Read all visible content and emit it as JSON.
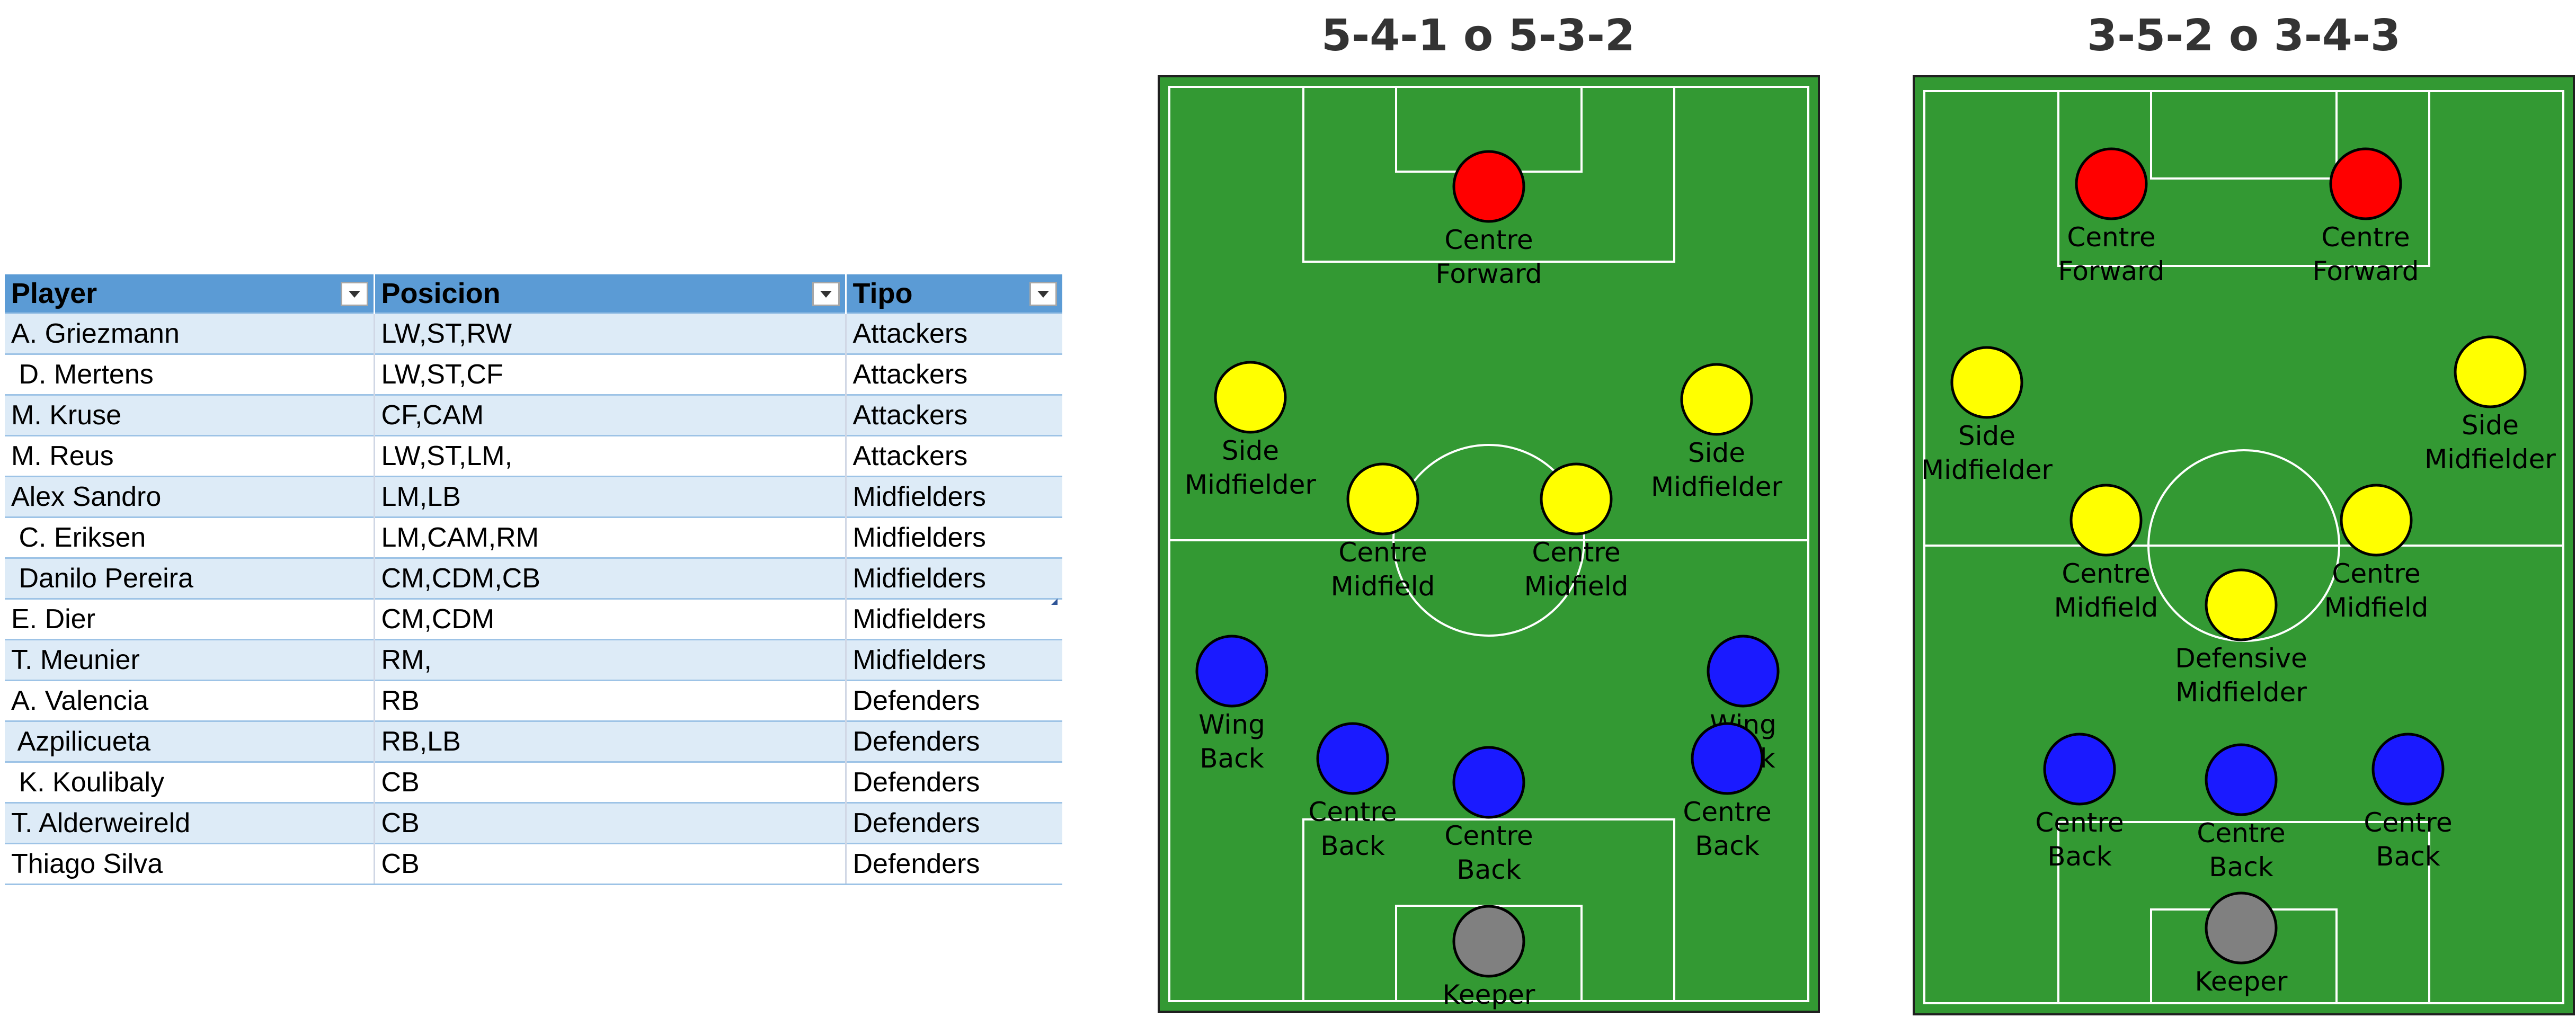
{
  "table": {
    "headers": [
      "Player",
      "Posicion",
      "Tipo"
    ],
    "rows": [
      [
        "A. Griezmann",
        "LW,ST,RW",
        "Attackers"
      ],
      [
        " D. Mertens",
        "LW,ST,CF",
        "Attackers"
      ],
      [
        "M. Kruse",
        "CF,CAM",
        "Attackers"
      ],
      [
        "M. Reus",
        "LW,ST,LM,",
        "Attackers"
      ],
      [
        "Alex Sandro",
        "LM,LB",
        "Midfielders"
      ],
      [
        " C. Eriksen",
        "LM,CAM,RM",
        "Midfielders"
      ],
      [
        " Danilo Pereira",
        "CM,CDM,CB",
        "Midfielders"
      ],
      [
        "E. Dier",
        "CM,CDM",
        "Midfielders"
      ],
      [
        "T. Meunier",
        "RM,",
        "Midfielders"
      ],
      [
        "A. Valencia",
        "RB",
        "Defenders"
      ],
      [
        " Azpilicueta",
        "RB,LB",
        "Defenders"
      ],
      [
        " K. Koulibaly",
        "CB",
        "Defenders"
      ],
      [
        "T. Alderweireld",
        "CB",
        "Defenders"
      ],
      [
        "Thiago Silva",
        "CB",
        "Defenders"
      ]
    ]
  },
  "colors": {
    "header_blue": "#5b9bd5",
    "band_blue": "#ddebf7",
    "pitch_green": "#339933",
    "forward_red": "#ff0000",
    "midfield_yellow": "#ffff00",
    "defender_blue": "#1a1aff",
    "keeper_gray": "#808080"
  },
  "formations": [
    {
      "title": "5-4-1 o 5-3-2",
      "players": [
        {
          "role": "forward",
          "label": [
            "Centre",
            "Forward"
          ]
        },
        {
          "role": "midfield",
          "label": [
            "Side",
            "Midfielder"
          ]
        },
        {
          "role": "midfield",
          "label": [
            "Side",
            "Midfielder"
          ]
        },
        {
          "role": "midfield",
          "label": [
            "Centre",
            "Midfield"
          ]
        },
        {
          "role": "midfield",
          "label": [
            "Centre",
            "Midfield"
          ]
        },
        {
          "role": "defender",
          "label": [
            "Wing",
            "Back"
          ]
        },
        {
          "role": "defender",
          "label": [
            "Wing",
            "Back"
          ]
        },
        {
          "role": "defender",
          "label": [
            "Centre",
            "Back"
          ]
        },
        {
          "role": "defender",
          "label": [
            "Centre",
            "Back"
          ]
        },
        {
          "role": "defender",
          "label": [
            "Centre",
            "Back"
          ]
        },
        {
          "role": "keeper",
          "label": [
            "Keeper"
          ]
        }
      ]
    },
    {
      "title": "3-5-2 o 3-4-3",
      "players": [
        {
          "role": "forward",
          "label": [
            "Centre",
            "Forward"
          ]
        },
        {
          "role": "forward",
          "label": [
            "Centre",
            "Forward"
          ]
        },
        {
          "role": "midfield",
          "label": [
            "Side",
            "Midfielder"
          ]
        },
        {
          "role": "midfield",
          "label": [
            "Side",
            "Midfielder"
          ]
        },
        {
          "role": "midfield",
          "label": [
            "Centre",
            "Midfield"
          ]
        },
        {
          "role": "midfield",
          "label": [
            "Centre",
            "Midfield"
          ]
        },
        {
          "role": "midfield",
          "label": [
            "Defensive",
            "Midfielder"
          ]
        },
        {
          "role": "defender",
          "label": [
            "Centre",
            "Back"
          ]
        },
        {
          "role": "defender",
          "label": [
            "Centre",
            "Back"
          ]
        },
        {
          "role": "defender",
          "label": [
            "Centre",
            "Back"
          ]
        },
        {
          "role": "keeper",
          "label": [
            "Keeper"
          ]
        }
      ]
    }
  ]
}
